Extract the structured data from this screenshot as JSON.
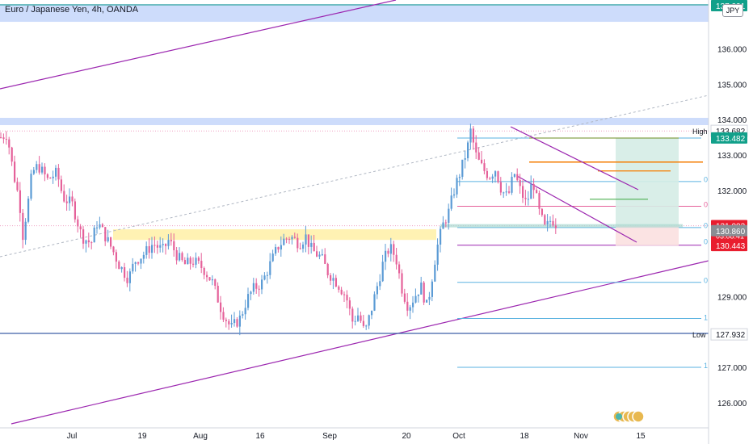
{
  "header": {
    "title": "Euro / Japanese Yen, 4h, OANDA",
    "currency_button": "JPY"
  },
  "colors": {
    "up": "#5b9bd5",
    "down": "#e5619a",
    "trendline": "#9c27b0",
    "fib": "#5ab2e0",
    "hline": "#3d5fa8",
    "band": "#c8d8fb",
    "zone": "#fff2b3",
    "profit": "#d5ece6",
    "loss": "#fbe0e0",
    "price_tag": "#8a8d93",
    "last_tag": "#e91e2f",
    "target_tag": "#11a08a",
    "orange": "#f57c00",
    "green_level": "#4caf50"
  },
  "icons": {
    "indicator_badges": "stacked-circles-icon"
  },
  "chart_data": {
    "type": "candlestick",
    "symbol": "EURJPY",
    "timeframe": "4h",
    "ylim": [
      125.4,
      137.4
    ],
    "y_ticks": [
      126.0,
      127.0,
      128.0,
      129.0,
      130.0,
      131.0,
      132.0,
      133.0,
      134.0,
      135.0,
      136.0,
      137.0
    ],
    "y_tick_labels": [
      "126.000",
      "127.000",
      "",
      "129.000",
      "",
      "",
      "132.000",
      "133.000",
      "134.000",
      "135.000",
      "136.000",
      ""
    ],
    "x_tick_labels": [
      "Jul",
      "19",
      "Aug",
      "16",
      "Sep",
      "20",
      "Oct",
      "18",
      "Nov",
      "15"
    ],
    "price_tags": [
      {
        "label": "137.221",
        "value": 137.221,
        "style": "pill"
      },
      {
        "label": "High",
        "value": 133.682,
        "style": "marker",
        "text": "133.682"
      },
      {
        "label": "133.482",
        "value": 133.482,
        "style": "target"
      },
      {
        "label": "131.003",
        "sub": "03:08:41",
        "value": 131.003,
        "style": "last"
      },
      {
        "label": "130.860",
        "value": 130.86,
        "style": "grey"
      },
      {
        "label": "130.443",
        "value": 130.443,
        "style": "last"
      },
      {
        "label": "Low",
        "value": 127.932,
        "style": "marker",
        "text": "127.932"
      }
    ],
    "fib_labels": [
      "0.",
      "0.",
      "0.",
      "0.",
      "0.",
      "1(",
      "1."
    ],
    "series_path": [
      [
        0,
        133.5
      ],
      [
        0.01,
        133.6
      ],
      [
        0.02,
        132.5
      ],
      [
        0.03,
        131.7
      ],
      [
        0.035,
        130.7
      ],
      [
        0.045,
        131.8
      ],
      [
        0.05,
        132.5
      ],
      [
        0.06,
        132.7
      ],
      [
        0.075,
        132.3
      ],
      [
        0.09,
        132.5
      ],
      [
        0.1,
        131.8
      ],
      [
        0.115,
        131.6
      ],
      [
        0.13,
        130.7
      ],
      [
        0.145,
        130.5
      ],
      [
        0.155,
        131.1
      ],
      [
        0.165,
        130.8
      ],
      [
        0.18,
        130.3
      ],
      [
        0.19,
        129.9
      ],
      [
        0.205,
        129.5
      ],
      [
        0.215,
        130.0
      ],
      [
        0.23,
        130.2
      ],
      [
        0.245,
        130.5
      ],
      [
        0.26,
        130.3
      ],
      [
        0.27,
        130.6
      ],
      [
        0.285,
        130.1
      ],
      [
        0.295,
        129.9
      ],
      [
        0.31,
        130.0
      ],
      [
        0.325,
        129.8
      ],
      [
        0.34,
        129.4
      ],
      [
        0.355,
        128.6
      ],
      [
        0.37,
        128.1
      ],
      [
        0.385,
        128.4
      ],
      [
        0.395,
        128.9
      ],
      [
        0.405,
        129.2
      ],
      [
        0.42,
        129.4
      ],
      [
        0.435,
        130.0
      ],
      [
        0.445,
        130.4
      ],
      [
        0.455,
        130.6
      ],
      [
        0.465,
        130.7
      ],
      [
        0.48,
        130.5
      ],
      [
        0.49,
        130.7
      ],
      [
        0.5,
        130.3
      ],
      [
        0.515,
        130.1
      ],
      [
        0.525,
        129.7
      ],
      [
        0.54,
        129.4
      ],
      [
        0.555,
        129.0
      ],
      [
        0.565,
        128.3
      ],
      [
        0.575,
        128.5
      ],
      [
        0.585,
        127.95
      ],
      [
        0.595,
        128.6
      ],
      [
        0.605,
        129.3
      ],
      [
        0.615,
        130.0
      ],
      [
        0.625,
        130.4
      ],
      [
        0.635,
        130.1
      ],
      [
        0.645,
        129.2
      ],
      [
        0.655,
        128.7
      ],
      [
        0.665,
        129.0
      ],
      [
        0.675,
        129.3
      ],
      [
        0.685,
        128.7
      ],
      [
        0.69,
        129.2
      ],
      [
        0.7,
        130.3
      ],
      [
        0.71,
        131.0
      ],
      [
        0.72,
        131.4
      ],
      [
        0.73,
        132.1
      ],
      [
        0.74,
        132.6
      ],
      [
        0.75,
        133.2
      ],
      [
        0.755,
        133.68
      ],
      [
        0.765,
        132.9
      ],
      [
        0.775,
        132.6
      ],
      [
        0.785,
        132.4
      ],
      [
        0.795,
        132.6
      ],
      [
        0.805,
        132.0
      ],
      [
        0.815,
        131.8
      ],
      [
        0.825,
        132.5
      ],
      [
        0.835,
        132.0
      ],
      [
        0.845,
        131.6
      ],
      [
        0.855,
        132.3
      ],
      [
        0.865,
        131.4
      ],
      [
        0.875,
        130.9
      ],
      [
        0.885,
        131.2
      ],
      [
        0.895,
        131.0
      ]
    ]
  }
}
